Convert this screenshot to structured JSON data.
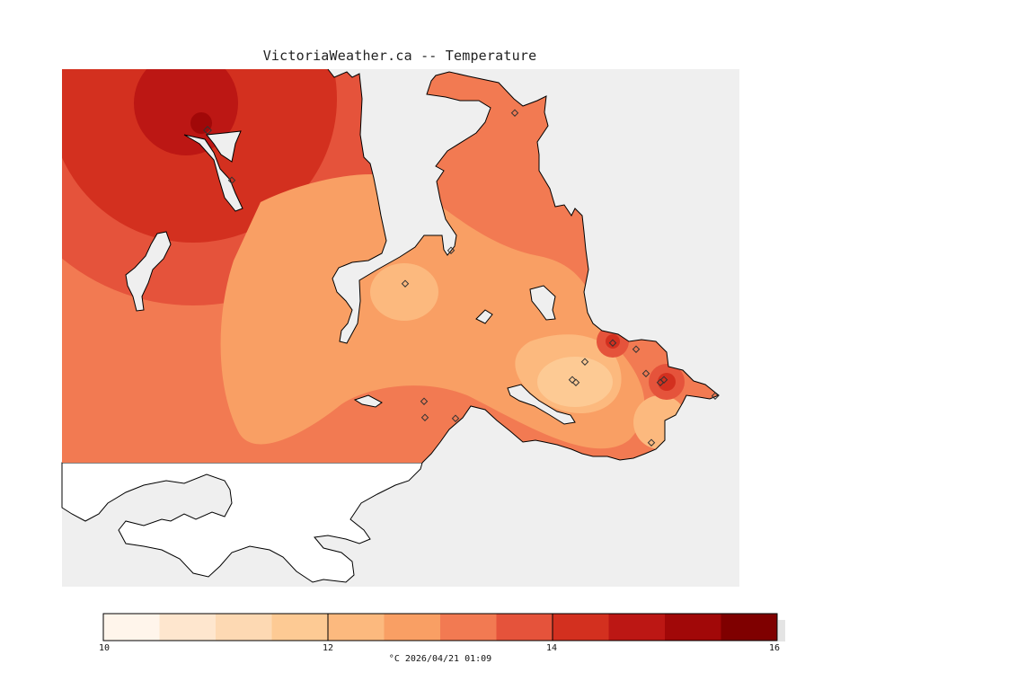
{
  "title": "VictoriaWeather.ca -- Temperature",
  "legend": {
    "units_time": "°C  2026/04/21 01:09",
    "tick_labels": [
      "10",
      "12",
      "14",
      "16"
    ],
    "min": 10,
    "max": 16,
    "bins": [
      {
        "from": 10.0,
        "to": 10.5,
        "color": "#fff5eb"
      },
      {
        "from": 10.5,
        "to": 11.0,
        "color": "#fee6ce"
      },
      {
        "from": 11.0,
        "to": 11.5,
        "color": "#fdd9b3"
      },
      {
        "from": 11.5,
        "to": 12.0,
        "color": "#fdca94"
      },
      {
        "from": 12.0,
        "to": 12.5,
        "color": "#fcb97e"
      },
      {
        "from": 12.5,
        "to": 13.0,
        "color": "#f99f64"
      },
      {
        "from": 13.0,
        "to": 13.5,
        "color": "#f27a52"
      },
      {
        "from": 13.5,
        "to": 14.0,
        "color": "#e5533b"
      },
      {
        "from": 14.0,
        "to": 14.5,
        "color": "#d3301f"
      },
      {
        "from": 14.5,
        "to": 15.0,
        "color": "#bc1714"
      },
      {
        "from": 15.0,
        "to": 15.5,
        "color": "#a10808"
      },
      {
        "from": 15.5,
        "to": 16.0,
        "color": "#7f0000"
      }
    ]
  },
  "colors": {
    "water": "#efefef",
    "outside_land": "#ffffff",
    "coast": "#000000"
  }
}
